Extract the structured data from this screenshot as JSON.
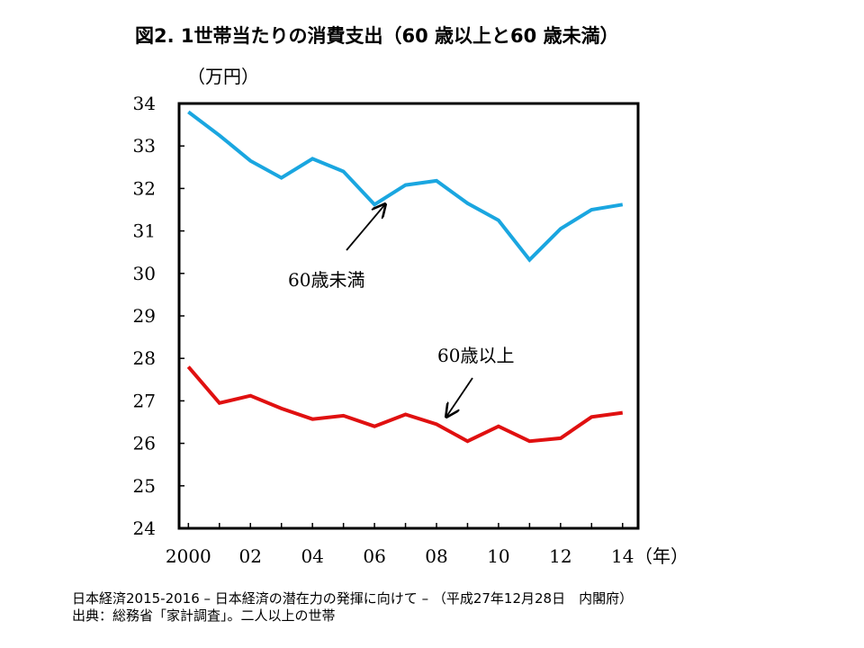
{
  "title": "図2.  1世帯当たりの消費支出（60 歳以上と60 歳未満）",
  "footer": {
    "line1": "日本経済2015-2016 – 日本経済の潜在力の発揮に向けて – （平成27年12月28日　内閣府）",
    "line2": "出典：総務省「家計調査」。二人以上の世帯"
  },
  "chart_data": {
    "type": "line",
    "title": "図2.  1世帯当たりの消費支出（60 歳以上と60 歳未満）",
    "ylabel": "（万円）",
    "xlabel": "（年）",
    "ylim": [
      24,
      34
    ],
    "xlim": [
      1999.7,
      2014.5
    ],
    "y_ticks": [
      24,
      25,
      26,
      27,
      28,
      29,
      30,
      31,
      32,
      33,
      34
    ],
    "x_ticks": [
      {
        "value": 2000,
        "label": "2000"
      },
      {
        "value": 2002,
        "label": "02"
      },
      {
        "value": 2004,
        "label": "04"
      },
      {
        "value": 2006,
        "label": "06"
      },
      {
        "value": 2008,
        "label": "08"
      },
      {
        "value": 2010,
        "label": "10"
      },
      {
        "value": 2012,
        "label": "12"
      },
      {
        "value": 2014,
        "label": "14"
      }
    ],
    "x": [
      2000,
      2001,
      2002,
      2003,
      2004,
      2005,
      2006,
      2007,
      2008,
      2009,
      2010,
      2011,
      2012,
      2013,
      2014
    ],
    "series": [
      {
        "name": "60歳未満",
        "color": "#1aa6e0",
        "values": [
          33.8,
          33.25,
          32.65,
          32.25,
          32.7,
          32.4,
          31.62,
          32.08,
          32.18,
          31.65,
          31.25,
          30.32,
          31.05,
          31.5,
          31.62
        ]
      },
      {
        "name": "60歳以上",
        "color": "#e01010",
        "values": [
          27.8,
          26.95,
          27.12,
          26.82,
          26.57,
          26.65,
          26.4,
          26.68,
          26.45,
          26.05,
          26.4,
          26.05,
          26.12,
          26.62,
          26.72
        ]
      }
    ],
    "annotations": [
      {
        "text": "60歳未満",
        "series": 0,
        "arrow_to_x": 2006.2
      },
      {
        "text": "60歳以上",
        "series": 1,
        "arrow_to_x": 2008.2
      }
    ],
    "grid": false
  }
}
